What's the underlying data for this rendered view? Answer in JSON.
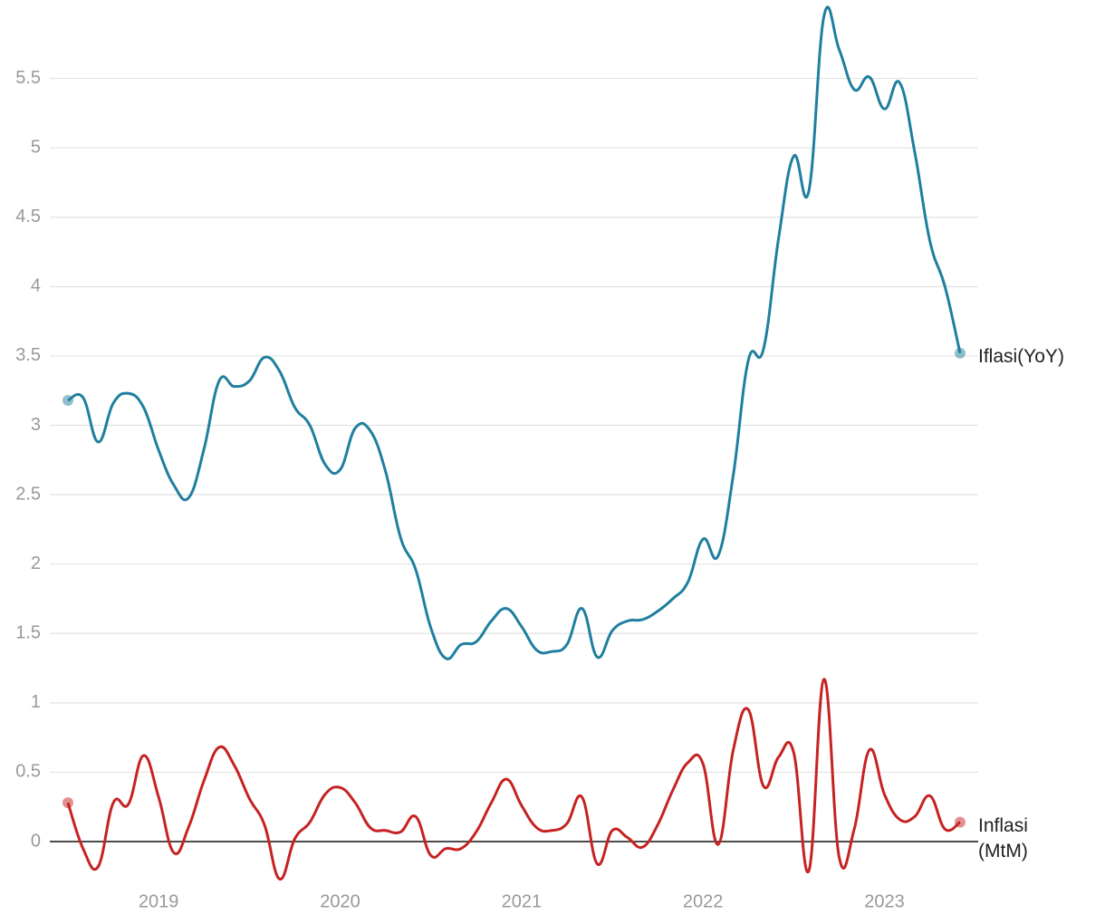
{
  "chart_data": {
    "type": "line",
    "categories": [
      null,
      null,
      null,
      null,
      null,
      null,
      "2019",
      null,
      null,
      null,
      null,
      null,
      null,
      null,
      null,
      null,
      null,
      null,
      "2020",
      null,
      null,
      null,
      null,
      null,
      null,
      null,
      null,
      null,
      null,
      null,
      "2021",
      null,
      null,
      null,
      null,
      null,
      null,
      null,
      null,
      null,
      null,
      null,
      "2022",
      null,
      null,
      null,
      null,
      null,
      null,
      null,
      null,
      null,
      null,
      null,
      "2023",
      null,
      null,
      null,
      null,
      null
    ],
    "series": [
      {
        "name": "Iflasi(YoY)",
        "color": "#1f7f9e",
        "values": [
          3.18,
          3.2,
          2.88,
          3.16,
          3.23,
          3.13,
          2.82,
          2.57,
          2.48,
          2.83,
          3.32,
          3.28,
          3.32,
          3.49,
          3.39,
          3.13,
          3.0,
          2.72,
          2.68,
          2.98,
          2.96,
          2.67,
          2.19,
          1.96,
          1.54,
          1.32,
          1.42,
          1.44,
          1.59,
          1.68,
          1.55,
          1.38,
          1.37,
          1.42,
          1.68,
          1.33,
          1.52,
          1.59,
          1.6,
          1.66,
          1.75,
          1.87,
          2.18,
          2.06,
          2.64,
          3.47,
          3.55,
          4.35,
          4.94,
          4.69,
          5.95,
          5.71,
          5.42,
          5.51,
          5.28,
          5.47,
          4.97,
          4.33,
          4.0,
          3.52
        ]
      },
      {
        "name": "Inflasi (MtM)",
        "color": "#c62222",
        "values": [
          0.28,
          -0.05,
          -0.18,
          0.28,
          0.27,
          0.62,
          0.32,
          -0.08,
          0.11,
          0.44,
          0.68,
          0.55,
          0.31,
          0.12,
          -0.27,
          0.02,
          0.14,
          0.34,
          0.39,
          0.28,
          0.1,
          0.08,
          0.07,
          0.18,
          -0.1,
          -0.05,
          -0.05,
          0.07,
          0.28,
          0.45,
          0.26,
          0.1,
          0.08,
          0.13,
          0.32,
          -0.16,
          0.08,
          0.03,
          -0.04,
          0.12,
          0.37,
          0.57,
          0.56,
          -0.02,
          0.66,
          0.95,
          0.4,
          0.61,
          0.64,
          -0.21,
          1.17,
          -0.11,
          0.09,
          0.66,
          0.34,
          0.16,
          0.18,
          0.33,
          0.09,
          0.14
        ]
      }
    ],
    "ylim": [
      -0.3,
      6.0
    ],
    "yticks": [
      0,
      0.5,
      1,
      1.5,
      2,
      2.5,
      3,
      3.5,
      4,
      4.5,
      5,
      5.5
    ],
    "grid": true
  }
}
